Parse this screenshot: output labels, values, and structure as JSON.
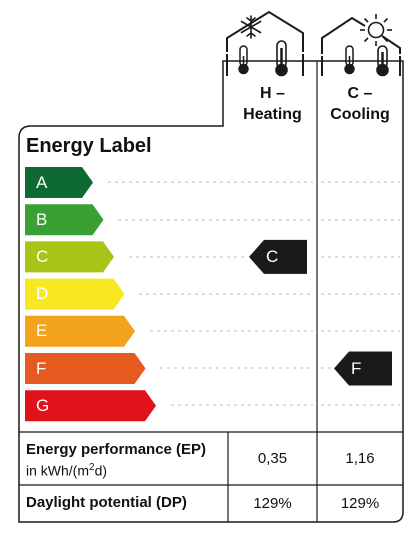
{
  "label_title": "Energy Label",
  "columns": [
    {
      "line1": "H –",
      "line2": "Heating",
      "icon": "house-snowflake-thermometer-icon"
    },
    {
      "line1": "C –",
      "line2": "Cooling",
      "icon": "house-sun-thermometer-icon"
    }
  ],
  "grades": [
    {
      "letter": "A",
      "color": "#0e6a33"
    },
    {
      "letter": "B",
      "color": "#3aa034"
    },
    {
      "letter": "C",
      "color": "#a7c417"
    },
    {
      "letter": "D",
      "color": "#f7e821"
    },
    {
      "letter": "E",
      "color": "#f2a21b"
    },
    {
      "letter": "F",
      "color": "#e65a1f"
    },
    {
      "letter": "G",
      "color": "#e0121c"
    }
  ],
  "ratings": {
    "heating": "C",
    "cooling": "F"
  },
  "marker_color": "#1a1a1a",
  "rows": {
    "ep": {
      "label_bold": "Energy performance (EP)",
      "unit_prefix": "in kWh/(m",
      "unit_sup": "2",
      "unit_suffix": "d)",
      "heating": "0,35",
      "cooling": "1,16"
    },
    "dp": {
      "label_bold": "Daylight potential (DP)",
      "heating": "129%",
      "cooling": "129%"
    }
  }
}
